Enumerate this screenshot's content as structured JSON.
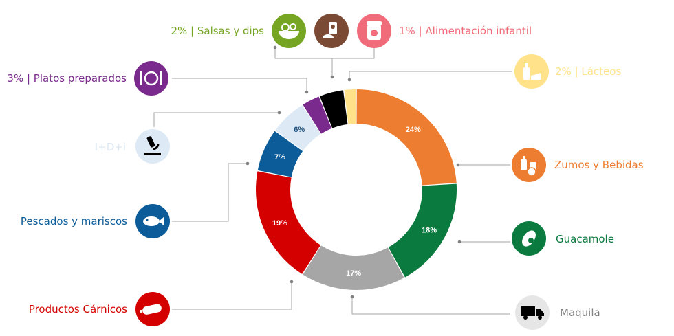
{
  "chart_data": {
    "type": "pie",
    "series": [
      {
        "label": "Zumos y Bebidas",
        "value": 24,
        "percent_label": "24%",
        "color": "#ED7D31",
        "label_color": "#ED7D31",
        "icon": "juice-bottles-icon"
      },
      {
        "label": "Guacamole",
        "value": 18,
        "percent_label": "18%",
        "color": "#0B7A3E",
        "label_color": "#0B7A3E",
        "icon": "avocado-icon"
      },
      {
        "label": "Maquila",
        "value": 17,
        "percent_label": "17%",
        "color": "#A6A6A6",
        "label_color": "#808080",
        "icon": "truck-icon"
      },
      {
        "label": "Productos Cárnicos",
        "value": 19,
        "percent_label": "19%",
        "color": "#D40000",
        "label_color": "#D40000",
        "icon": "sausage-icon"
      },
      {
        "label": "Pescados y mariscos",
        "value": 7,
        "percent_label": "7%",
        "color": "#0C5C9A",
        "label_color": "#0C5C9A",
        "icon": "fish-icon"
      },
      {
        "label": "I+D+i",
        "value": 6,
        "percent_label": "6%",
        "color": "#DDEAF6",
        "label_color": "#DDEAF6",
        "icon": "microscope-icon"
      },
      {
        "label": "3% | Platos preparados",
        "value": 3,
        "percent_label": "",
        "color": "#7A2A8C",
        "label_color": "#7A2A8C",
        "icon": "plate-cutlery-icon"
      },
      {
        "label": "2% | Salsas y dips",
        "value": 2,
        "percent_label": "",
        "color": "#000000",
        "label_color": "#76A524",
        "icon": "vegetables-bowl-icon"
      },
      {
        "label": "1% | Alimentación infantil",
        "value": 1,
        "percent_label": "",
        "color": "#FFE28A",
        "label_color": "#F06C7A",
        "icon": "baby-food-jar-icon"
      },
      {
        "label": "2% | Lácteos",
        "value": 2,
        "percent_label": "",
        "color": "#FFE28A",
        "label_color": "#FFE28A",
        "icon": "dairy-icon"
      }
    ],
    "extra_icon": "pet-food-icon"
  }
}
